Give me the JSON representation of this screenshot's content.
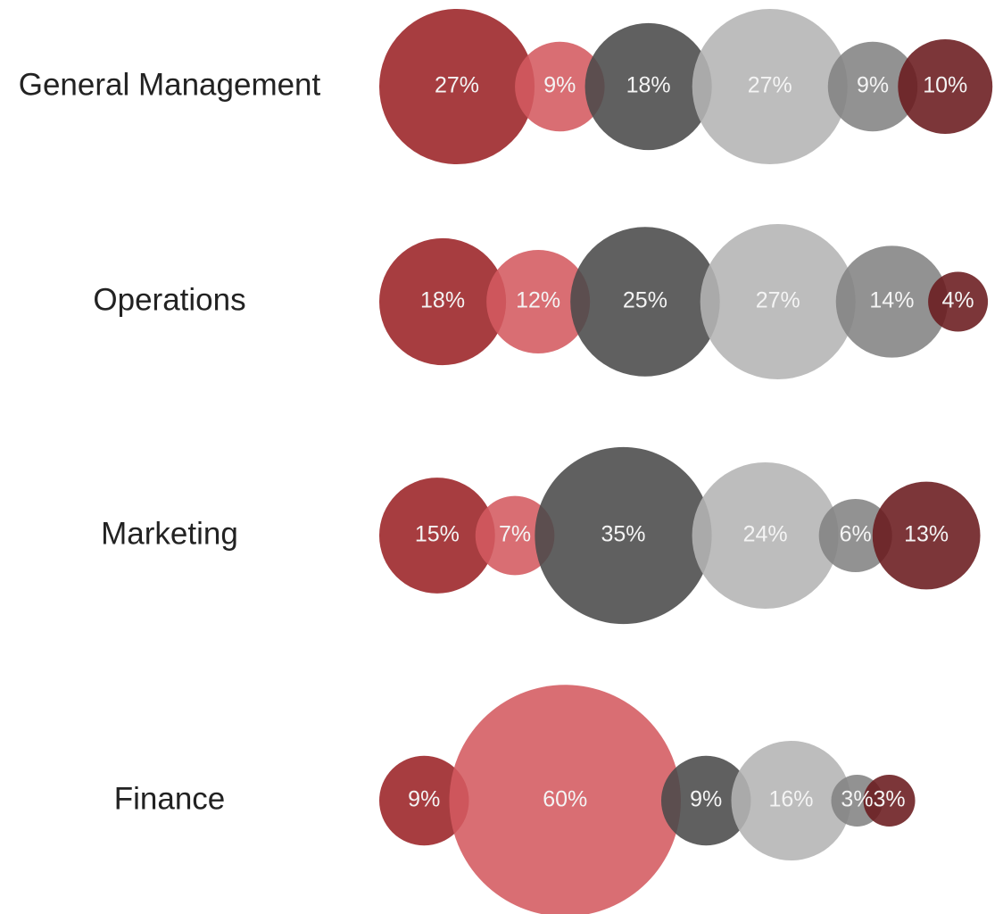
{
  "chart_data": {
    "type": "bubble",
    "categories": [
      "General Management",
      "Operations",
      "Marketing",
      "Finance"
    ],
    "series": [
      {
        "color": "#9b2226",
        "values": [
          27,
          18,
          15,
          9
        ],
        "value_labels": [
          "27%",
          "18%",
          "15%",
          "9%"
        ]
      },
      {
        "color": "#d45a60",
        "values": [
          9,
          12,
          7,
          60
        ],
        "value_labels": [
          "9%",
          "12%",
          "7%",
          "60%"
        ]
      },
      {
        "color": "#4a4a4a",
        "values": [
          18,
          25,
          35,
          9
        ],
        "value_labels": [
          "18%",
          "25%",
          "35%",
          "9%"
        ]
      },
      {
        "color": "#b4b4b4",
        "values": [
          27,
          27,
          24,
          16
        ],
        "value_labels": [
          "27%",
          "27%",
          "24%",
          "16%"
        ]
      },
      {
        "color": "#838383",
        "values": [
          9,
          14,
          6,
          3
        ],
        "value_labels": [
          "9%",
          "14%",
          "6%",
          "3%"
        ]
      },
      {
        "color": "#6a1a1e",
        "values": [
          10,
          4,
          13,
          3
        ],
        "value_labels": [
          "10%",
          "4%",
          "13%",
          "3%"
        ]
      }
    ]
  }
}
